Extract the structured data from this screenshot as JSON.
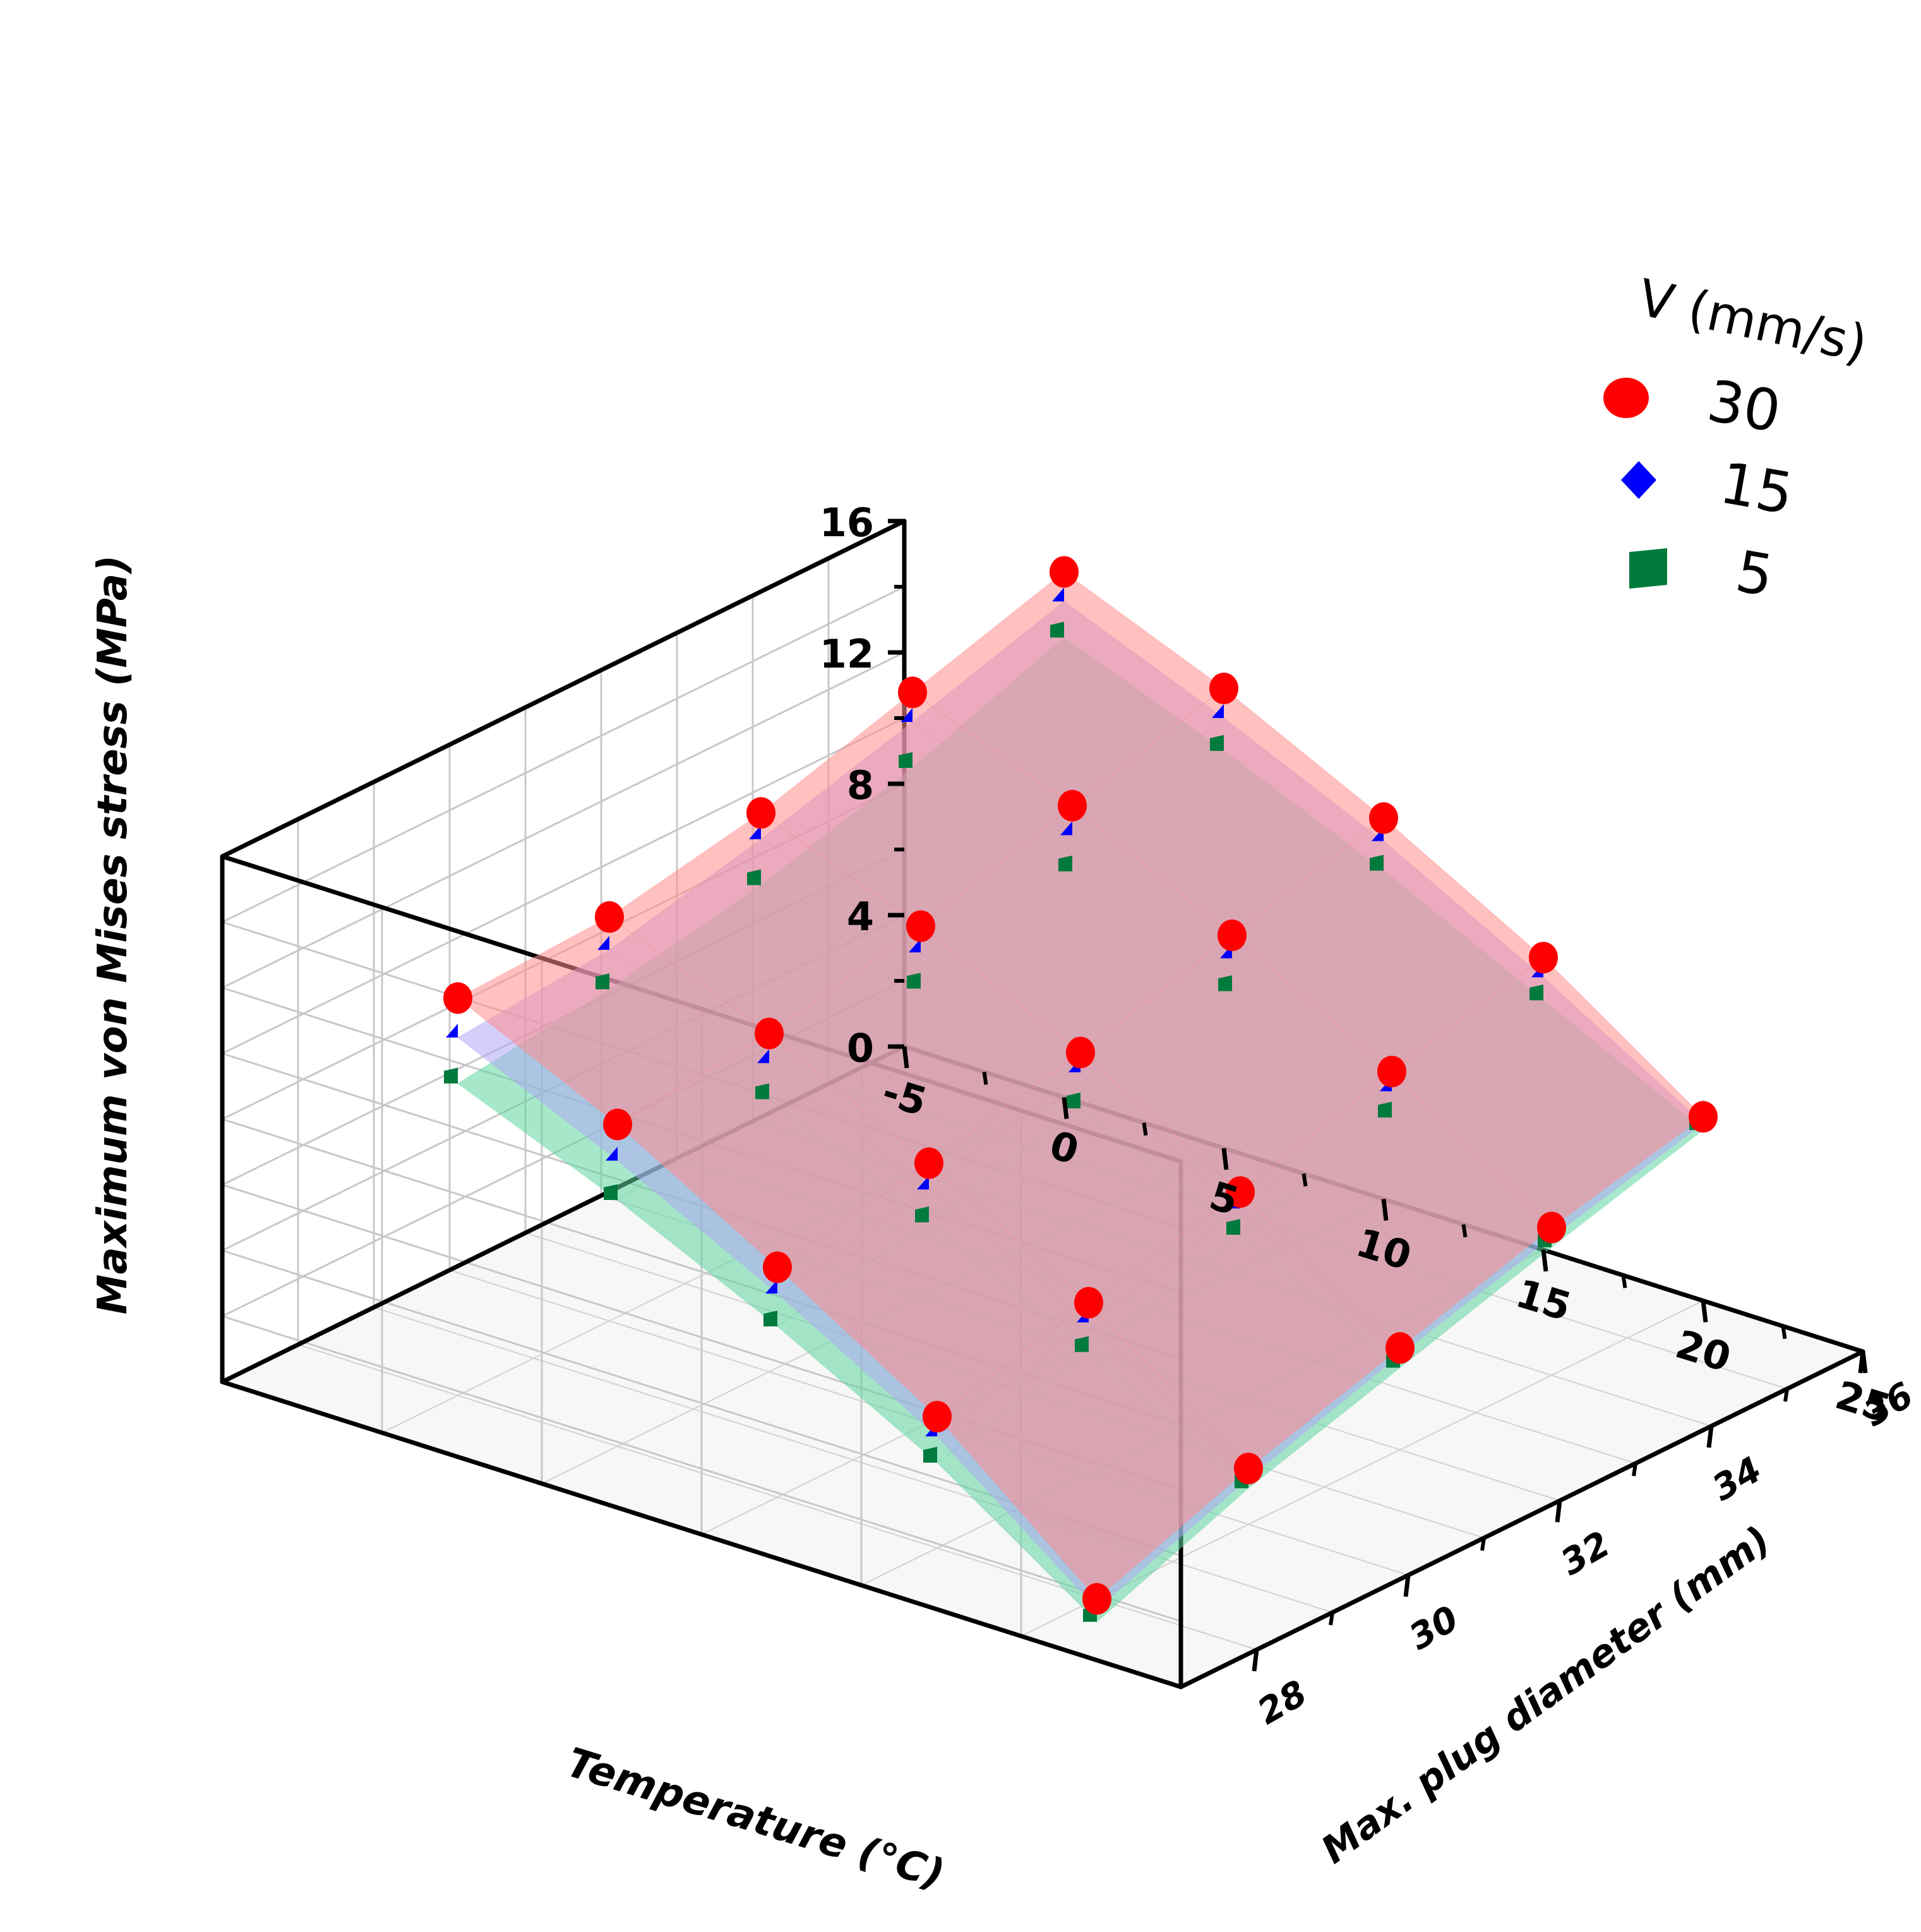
{
  "chart_data": {
    "type": "scatter",
    "title": "",
    "xlabel": "Temperature (°C)",
    "ylabel": "Max. plug diameter (mm)",
    "zlabel": "Maximum von Mises stress (MPa)",
    "xlim": [
      -5,
      25
    ],
    "ylim": [
      27,
      36
    ],
    "zlim": [
      0,
      16
    ],
    "x_ticks": [
      "-5",
      "0",
      "5",
      "10",
      "15",
      "20",
      "25"
    ],
    "y_ticks": [
      "28",
      "30",
      "32",
      "34",
      "36"
    ],
    "z_ticks": [
      "0",
      "4",
      "8",
      "12",
      "16"
    ],
    "legend": {
      "title": "V (mm/s)",
      "position": "top-right",
      "entries": [
        "30",
        "15",
        "5"
      ]
    },
    "series": [
      {
        "name": "30",
        "marker": "circle",
        "color": "#ff0000",
        "surface_color": "#ff8c8c",
        "points": [
          {
            "x": 20,
            "y": 28,
            "z": 0.0
          },
          {
            "x": 15,
            "y": 28,
            "z": 4.0
          },
          {
            "x": 10,
            "y": 28,
            "z": 7.0
          },
          {
            "x": 5,
            "y": 28,
            "z": 9.8
          },
          {
            "x": 0,
            "y": 28,
            "z": 12.1
          },
          {
            "x": 20,
            "y": 30,
            "z": 1.7
          },
          {
            "x": 15,
            "y": 30,
            "z": 5.2
          },
          {
            "x": 10,
            "y": 30,
            "z": 7.9
          },
          {
            "x": 5,
            "y": 30,
            "z": 10.3
          },
          {
            "x": 0,
            "y": 30,
            "z": 12.3
          },
          {
            "x": 20,
            "y": 32,
            "z": 3.1
          },
          {
            "x": 15,
            "y": 32,
            "z": 6.3
          },
          {
            "x": 10,
            "y": 32,
            "z": 9.0
          },
          {
            "x": 5,
            "y": 32,
            "z": 11.3
          },
          {
            "x": 0,
            "y": 32,
            "z": 13.2
          },
          {
            "x": 20,
            "y": 34,
            "z": 4.5
          },
          {
            "x": 15,
            "y": 34,
            "z": 7.7
          },
          {
            "x": 10,
            "y": 34,
            "z": 10.3
          },
          {
            "x": 5,
            "y": 34,
            "z": 12.7
          },
          {
            "x": 0,
            "y": 34,
            "z": 14.6
          },
          {
            "x": 20,
            "y": 36,
            "z": 5.6
          },
          {
            "x": 15,
            "y": 36,
            "z": 8.9
          },
          {
            "x": 10,
            "y": 36,
            "z": 11.6
          },
          {
            "x": 5,
            "y": 36,
            "z": 14.0
          },
          {
            "x": 0,
            "y": 36,
            "z": 16.0
          }
        ]
      },
      {
        "name": "15",
        "marker": "diamond",
        "color": "#0000ff",
        "surface_color": "#b0a8f5",
        "points": [
          {
            "x": 20,
            "y": 28,
            "z": -0.3
          },
          {
            "x": 15,
            "y": 28,
            "z": 3.4
          },
          {
            "x": 10,
            "y": 28,
            "z": 6.2
          },
          {
            "x": 5,
            "y": 28,
            "z": 8.7
          },
          {
            "x": 0,
            "y": 28,
            "z": 10.9
          },
          {
            "x": 20,
            "y": 30,
            "z": 1.4
          },
          {
            "x": 15,
            "y": 30,
            "z": 4.6
          },
          {
            "x": 10,
            "y": 30,
            "z": 7.1
          },
          {
            "x": 5,
            "y": 30,
            "z": 9.4
          },
          {
            "x": 0,
            "y": 30,
            "z": 11.3
          },
          {
            "x": 20,
            "y": 32,
            "z": 2.9
          },
          {
            "x": 15,
            "y": 32,
            "z": 5.8
          },
          {
            "x": 10,
            "y": 32,
            "z": 8.4
          },
          {
            "x": 5,
            "y": 32,
            "z": 10.5
          },
          {
            "x": 0,
            "y": 32,
            "z": 12.4
          },
          {
            "x": 20,
            "y": 34,
            "z": 4.2
          },
          {
            "x": 15,
            "y": 34,
            "z": 7.1
          },
          {
            "x": 10,
            "y": 34,
            "z": 9.6
          },
          {
            "x": 5,
            "y": 34,
            "z": 11.8
          },
          {
            "x": 0,
            "y": 34,
            "z": 13.7
          },
          {
            "x": 20,
            "y": 36,
            "z": 5.4
          },
          {
            "x": 15,
            "y": 36,
            "z": 8.3
          },
          {
            "x": 10,
            "y": 36,
            "z": 10.9
          },
          {
            "x": 5,
            "y": 36,
            "z": 13.1
          },
          {
            "x": 0,
            "y": 36,
            "z": 15.1
          }
        ]
      },
      {
        "name": "5",
        "marker": "square",
        "color": "#007a3d",
        "surface_color": "#5ed6a0",
        "points": [
          {
            "x": 20,
            "y": 28,
            "z": -0.7
          },
          {
            "x": 15,
            "y": 28,
            "z": 2.6
          },
          {
            "x": 10,
            "y": 28,
            "z": 5.2
          },
          {
            "x": 5,
            "y": 28,
            "z": 7.5
          },
          {
            "x": 0,
            "y": 28,
            "z": 9.5
          },
          {
            "x": 20,
            "y": 30,
            "z": 1.1
          },
          {
            "x": 15,
            "y": 30,
            "z": 3.7
          },
          {
            "x": 10,
            "y": 30,
            "z": 6.1
          },
          {
            "x": 5,
            "y": 30,
            "z": 8.3
          },
          {
            "x": 0,
            "y": 30,
            "z": 10.1
          },
          {
            "x": 20,
            "y": 32,
            "z": 2.5
          },
          {
            "x": 15,
            "y": 32,
            "z": 5.0
          },
          {
            "x": 10,
            "y": 32,
            "z": 7.3
          },
          {
            "x": 5,
            "y": 32,
            "z": 9.4
          },
          {
            "x": 0,
            "y": 32,
            "z": 11.0
          },
          {
            "x": 20,
            "y": 34,
            "z": 3.9
          },
          {
            "x": 15,
            "y": 34,
            "z": 6.3
          },
          {
            "x": 10,
            "y": 34,
            "z": 8.6
          },
          {
            "x": 5,
            "y": 34,
            "z": 10.7
          },
          {
            "x": 0,
            "y": 34,
            "z": 12.3
          },
          {
            "x": 20,
            "y": 36,
            "z": 5.2
          },
          {
            "x": 15,
            "y": 36,
            "z": 7.6
          },
          {
            "x": 10,
            "y": 36,
            "z": 10.0
          },
          {
            "x": 5,
            "y": 36,
            "z": 12.1
          },
          {
            "x": 0,
            "y": 36,
            "z": 14.0
          }
        ]
      }
    ]
  }
}
